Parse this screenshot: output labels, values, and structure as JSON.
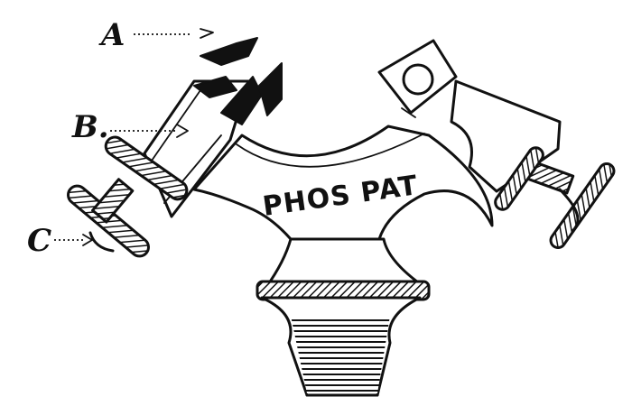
{
  "figure": {
    "engraved_text": "PHOS PAT",
    "labels": {
      "a": "A",
      "b": "B.",
      "c": "C"
    }
  }
}
